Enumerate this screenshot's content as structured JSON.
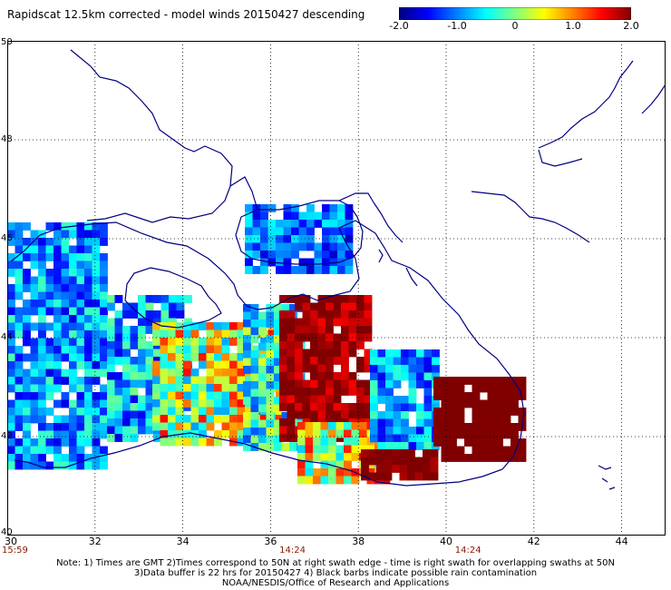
{
  "title": "Rapidscat 12.5km corrected - model winds 20150427 descending",
  "colorbar": {
    "labels": [
      "-2.0",
      "-1.0",
      "0",
      "1.0",
      "2.0"
    ],
    "label_values": [
      -2.0,
      -1.0,
      0.0,
      1.0,
      2.0
    ],
    "range": [
      -2.0,
      2.0
    ],
    "stops": [
      "#000080",
      "#0000ff",
      "#0080ff",
      "#00ffff",
      "#80ff80",
      "#ffff00",
      "#ff8000",
      "#ff0000",
      "#800000"
    ]
  },
  "axes": {
    "lat_labels": [
      "50",
      "48",
      "46",
      "44",
      "42",
      "40"
    ],
    "lat_values": [
      50,
      48,
      46,
      44,
      42,
      40
    ],
    "lon_labels": [
      "30",
      "32",
      "34",
      "36",
      "38",
      "40",
      "42",
      "44"
    ],
    "lon_values": [
      30,
      32,
      34,
      36,
      38,
      40,
      42,
      44
    ],
    "lat_range": [
      40,
      50
    ],
    "lon_range": [
      30,
      45
    ],
    "grid": "dotted"
  },
  "swath_times": [
    {
      "text": "15:59",
      "lon": 30
    },
    {
      "text": "14:24",
      "lon": 36.5
    },
    {
      "text": "14:24",
      "lon": 40.5
    }
  ],
  "notes": [
    "Note: 1) Times are GMT 2)Times correspond to 50N at right swath edge - time is right swath for overlapping swaths at 50N",
    "3)Data buffer is 22 hrs for 20150427 4) Black barbs indicate possible rain contamination",
    "NOAA/NESDIS/Office of Research and Applications"
  ]
}
